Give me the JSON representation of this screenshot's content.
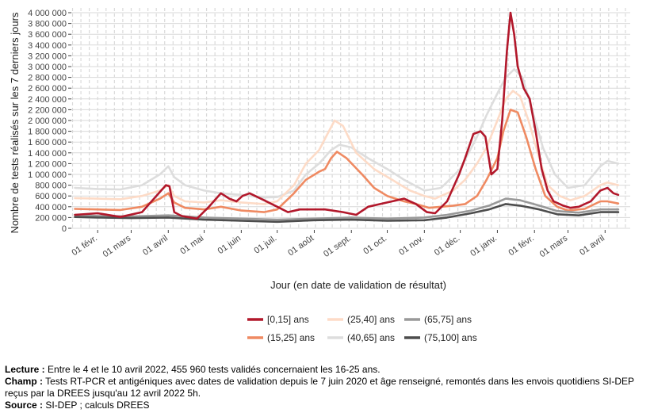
{
  "chart_data": {
    "type": "line",
    "title": "",
    "xlabel": "Jour (en date de validation de résultat)",
    "ylabel": "Nombre de tests réalisés sur les 7 derniers jours",
    "ylim": [
      0,
      4000000
    ],
    "yticks": [
      0,
      200000,
      400000,
      600000,
      800000,
      1000000,
      1200000,
      1400000,
      1600000,
      1800000,
      2000000,
      2200000,
      2400000,
      2600000,
      2800000,
      3000000,
      3200000,
      3400000,
      3600000,
      3800000,
      4000000
    ],
    "ytick_labels": [
      "0",
      "200 000",
      "400 000",
      "600 000",
      "800 000",
      "1 000 000",
      "1 200 000",
      "1 400 000",
      "1 600 000",
      "1 800 000",
      "2 000 000",
      "2 200 000",
      "2 400 000",
      "2 600 000",
      "2 800 000",
      "3 000 000",
      "3 200 000",
      "3 400 000",
      "3 600 000",
      "3 800 000",
      "4 000 000"
    ],
    "xlim": [
      "2021-01-10",
      "2022-04-22"
    ],
    "xticks": [
      "2021-02-01",
      "2021-03-01",
      "2021-04-01",
      "2021-05-01",
      "2021-06-01",
      "2021-07-01",
      "2021-08-01",
      "2021-09-01",
      "2021-10-01",
      "2021-11-01",
      "2021-12-01",
      "2022-01-01",
      "2022-02-01",
      "2022-03-01",
      "2022-04-01"
    ],
    "xtick_labels": [
      "01 févr.",
      "01 mars",
      "01 avril",
      "01 mai",
      "01 juin",
      "01 juil.",
      "01 août",
      "01 sept.",
      "01 oct.",
      "01 nov.",
      "01 déc.",
      "01 janv.",
      "01 févr.",
      "01 mars",
      "01 avril"
    ],
    "grid": true,
    "legend_position": "bottom",
    "series": [
      {
        "name": "[0,15] ans",
        "color": "#b2182b",
        "points": [
          [
            "2021-01-13",
            250000
          ],
          [
            "2021-02-01",
            280000
          ],
          [
            "2021-02-20",
            210000
          ],
          [
            "2021-03-10",
            300000
          ],
          [
            "2021-03-20",
            550000
          ],
          [
            "2021-03-30",
            800000
          ],
          [
            "2021-04-02",
            780000
          ],
          [
            "2021-04-06",
            300000
          ],
          [
            "2021-04-12",
            230000
          ],
          [
            "2021-04-25",
            180000
          ],
          [
            "2021-05-05",
            400000
          ],
          [
            "2021-05-15",
            650000
          ],
          [
            "2021-05-22",
            550000
          ],
          [
            "2021-05-28",
            500000
          ],
          [
            "2021-06-02",
            600000
          ],
          [
            "2021-06-08",
            650000
          ],
          [
            "2021-06-20",
            520000
          ],
          [
            "2021-07-01",
            400000
          ],
          [
            "2021-07-10",
            300000
          ],
          [
            "2021-07-20",
            350000
          ],
          [
            "2021-08-01",
            350000
          ],
          [
            "2021-08-10",
            350000
          ],
          [
            "2021-08-25",
            300000
          ],
          [
            "2021-09-05",
            250000
          ],
          [
            "2021-09-15",
            400000
          ],
          [
            "2021-09-25",
            450000
          ],
          [
            "2021-10-05",
            500000
          ],
          [
            "2021-10-15",
            550000
          ],
          [
            "2021-10-25",
            450000
          ],
          [
            "2021-11-03",
            300000
          ],
          [
            "2021-11-10",
            280000
          ],
          [
            "2021-11-20",
            500000
          ],
          [
            "2021-11-30",
            1000000
          ],
          [
            "2021-12-05",
            1300000
          ],
          [
            "2021-12-12",
            1750000
          ],
          [
            "2021-12-18",
            1800000
          ],
          [
            "2021-12-22",
            1700000
          ],
          [
            "2021-12-27",
            1000000
          ],
          [
            "2022-01-01",
            1100000
          ],
          [
            "2022-01-05",
            2000000
          ],
          [
            "2022-01-09",
            3300000
          ],
          [
            "2022-01-12",
            4000000
          ],
          [
            "2022-01-15",
            3600000
          ],
          [
            "2022-01-18",
            3000000
          ],
          [
            "2022-01-23",
            2600000
          ],
          [
            "2022-01-28",
            2400000
          ],
          [
            "2022-02-02",
            1800000
          ],
          [
            "2022-02-07",
            1100000
          ],
          [
            "2022-02-12",
            700000
          ],
          [
            "2022-02-17",
            500000
          ],
          [
            "2022-02-25",
            420000
          ],
          [
            "2022-03-03",
            380000
          ],
          [
            "2022-03-10",
            400000
          ],
          [
            "2022-03-20",
            500000
          ],
          [
            "2022-03-28",
            700000
          ],
          [
            "2022-04-03",
            750000
          ],
          [
            "2022-04-08",
            650000
          ],
          [
            "2022-04-12",
            620000
          ]
        ]
      },
      {
        "name": "(15,25] ans",
        "color": "#ef8a62",
        "points": [
          [
            "2021-01-13",
            360000
          ],
          [
            "2021-02-01",
            350000
          ],
          [
            "2021-02-20",
            340000
          ],
          [
            "2021-03-10",
            400000
          ],
          [
            "2021-03-25",
            550000
          ],
          [
            "2021-04-01",
            650000
          ],
          [
            "2021-04-06",
            480000
          ],
          [
            "2021-04-15",
            380000
          ],
          [
            "2021-05-01",
            350000
          ],
          [
            "2021-05-15",
            400000
          ],
          [
            "2021-06-01",
            330000
          ],
          [
            "2021-06-20",
            300000
          ],
          [
            "2021-07-01",
            350000
          ],
          [
            "2021-07-15",
            650000
          ],
          [
            "2021-07-25",
            900000
          ],
          [
            "2021-08-05",
            1050000
          ],
          [
            "2021-08-10",
            1100000
          ],
          [
            "2021-08-15",
            1300000
          ],
          [
            "2021-08-20",
            1420000
          ],
          [
            "2021-08-28",
            1300000
          ],
          [
            "2021-09-10",
            1000000
          ],
          [
            "2021-09-20",
            750000
          ],
          [
            "2021-10-01",
            600000
          ],
          [
            "2021-10-15",
            500000
          ],
          [
            "2021-10-25",
            450000
          ],
          [
            "2021-11-05",
            380000
          ],
          [
            "2021-11-15",
            400000
          ],
          [
            "2021-11-25",
            420000
          ],
          [
            "2021-12-05",
            450000
          ],
          [
            "2021-12-15",
            600000
          ],
          [
            "2021-12-23",
            900000
          ],
          [
            "2022-01-01",
            1300000
          ],
          [
            "2022-01-06",
            1800000
          ],
          [
            "2022-01-12",
            2200000
          ],
          [
            "2022-01-18",
            2150000
          ],
          [
            "2022-01-25",
            1700000
          ],
          [
            "2022-02-02",
            1100000
          ],
          [
            "2022-02-10",
            600000
          ],
          [
            "2022-02-20",
            400000
          ],
          [
            "2022-03-01",
            330000
          ],
          [
            "2022-03-15",
            360000
          ],
          [
            "2022-03-28",
            500000
          ],
          [
            "2022-04-03",
            500000
          ],
          [
            "2022-04-12",
            460000
          ]
        ]
      },
      {
        "name": "(25,40] ans",
        "color": "#fddbc7",
        "points": [
          [
            "2021-01-13",
            560000
          ],
          [
            "2021-02-01",
            550000
          ],
          [
            "2021-02-20",
            540000
          ],
          [
            "2021-03-10",
            600000
          ],
          [
            "2021-03-25",
            700000
          ],
          [
            "2021-04-01",
            800000
          ],
          [
            "2021-04-06",
            600000
          ],
          [
            "2021-04-15",
            500000
          ],
          [
            "2021-05-01",
            480000
          ],
          [
            "2021-05-15",
            520000
          ],
          [
            "2021-06-01",
            480000
          ],
          [
            "2021-06-20",
            450000
          ],
          [
            "2021-07-01",
            500000
          ],
          [
            "2021-07-15",
            800000
          ],
          [
            "2021-07-25",
            1200000
          ],
          [
            "2021-08-05",
            1450000
          ],
          [
            "2021-08-12",
            1750000
          ],
          [
            "2021-08-18",
            2000000
          ],
          [
            "2021-08-25",
            1900000
          ],
          [
            "2021-09-05",
            1400000
          ],
          [
            "2021-09-20",
            1100000
          ],
          [
            "2021-10-05",
            900000
          ],
          [
            "2021-10-20",
            700000
          ],
          [
            "2021-11-01",
            600000
          ],
          [
            "2021-11-10",
            550000
          ],
          [
            "2021-11-25",
            700000
          ],
          [
            "2021-12-05",
            900000
          ],
          [
            "2021-12-15",
            1200000
          ],
          [
            "2021-12-23",
            1500000
          ],
          [
            "2022-01-01",
            2000000
          ],
          [
            "2022-01-08",
            2400000
          ],
          [
            "2022-01-14",
            2550000
          ],
          [
            "2022-01-20",
            2450000
          ],
          [
            "2022-01-27",
            2000000
          ],
          [
            "2022-02-05",
            1300000
          ],
          [
            "2022-02-12",
            800000
          ],
          [
            "2022-02-22",
            600000
          ],
          [
            "2022-03-03",
            520000
          ],
          [
            "2022-03-15",
            600000
          ],
          [
            "2022-03-28",
            800000
          ],
          [
            "2022-04-03",
            850000
          ],
          [
            "2022-04-12",
            800000
          ]
        ]
      },
      {
        "name": "(40,65] ans",
        "color": "#dddddd",
        "points": [
          [
            "2021-01-13",
            750000
          ],
          [
            "2021-02-01",
            730000
          ],
          [
            "2021-02-20",
            720000
          ],
          [
            "2021-03-10",
            800000
          ],
          [
            "2021-03-25",
            1000000
          ],
          [
            "2021-04-01",
            1150000
          ],
          [
            "2021-04-06",
            950000
          ],
          [
            "2021-04-15",
            800000
          ],
          [
            "2021-05-01",
            700000
          ],
          [
            "2021-05-15",
            650000
          ],
          [
            "2021-06-01",
            620000
          ],
          [
            "2021-06-20",
            570000
          ],
          [
            "2021-07-01",
            580000
          ],
          [
            "2021-07-15",
            700000
          ],
          [
            "2021-07-25",
            1000000
          ],
          [
            "2021-08-05",
            1200000
          ],
          [
            "2021-08-15",
            1450000
          ],
          [
            "2021-08-22",
            1550000
          ],
          [
            "2021-09-01",
            1500000
          ],
          [
            "2021-09-15",
            1300000
          ],
          [
            "2021-10-01",
            1100000
          ],
          [
            "2021-10-15",
            900000
          ],
          [
            "2021-11-01",
            700000
          ],
          [
            "2021-11-15",
            750000
          ],
          [
            "2021-12-01",
            1100000
          ],
          [
            "2021-12-15",
            1700000
          ],
          [
            "2021-12-23",
            2100000
          ],
          [
            "2022-01-01",
            2500000
          ],
          [
            "2022-01-08",
            2800000
          ],
          [
            "2022-01-15",
            2950000
          ],
          [
            "2022-01-22",
            2800000
          ],
          [
            "2022-01-30",
            2200000
          ],
          [
            "2022-02-08",
            1500000
          ],
          [
            "2022-02-18",
            1000000
          ],
          [
            "2022-03-01",
            750000
          ],
          [
            "2022-03-15",
            800000
          ],
          [
            "2022-03-28",
            1150000
          ],
          [
            "2022-04-03",
            1250000
          ],
          [
            "2022-04-12",
            1200000
          ]
        ]
      },
      {
        "name": "(65,75] ans",
        "color": "#999999",
        "points": [
          [
            "2021-01-13",
            250000
          ],
          [
            "2021-02-01",
            230000
          ],
          [
            "2021-03-01",
            220000
          ],
          [
            "2021-04-01",
            240000
          ],
          [
            "2021-05-01",
            200000
          ],
          [
            "2021-06-01",
            180000
          ],
          [
            "2021-07-01",
            160000
          ],
          [
            "2021-08-01",
            180000
          ],
          [
            "2021-09-01",
            200000
          ],
          [
            "2021-10-01",
            180000
          ],
          [
            "2021-11-01",
            200000
          ],
          [
            "2021-11-20",
            250000
          ],
          [
            "2021-12-10",
            330000
          ],
          [
            "2021-12-25",
            420000
          ],
          [
            "2022-01-08",
            550000
          ],
          [
            "2022-01-20",
            520000
          ],
          [
            "2022-02-05",
            420000
          ],
          [
            "2022-02-20",
            320000
          ],
          [
            "2022-03-10",
            290000
          ],
          [
            "2022-03-28",
            350000
          ],
          [
            "2022-04-12",
            350000
          ]
        ]
      },
      {
        "name": "(75,100] ans",
        "color": "#4d4d4d",
        "points": [
          [
            "2021-01-13",
            210000
          ],
          [
            "2021-02-01",
            200000
          ],
          [
            "2021-03-01",
            190000
          ],
          [
            "2021-04-01",
            200000
          ],
          [
            "2021-05-01",
            160000
          ],
          [
            "2021-06-01",
            140000
          ],
          [
            "2021-07-01",
            120000
          ],
          [
            "2021-08-01",
            150000
          ],
          [
            "2021-09-01",
            160000
          ],
          [
            "2021-10-01",
            140000
          ],
          [
            "2021-11-01",
            150000
          ],
          [
            "2021-11-20",
            200000
          ],
          [
            "2021-12-10",
            280000
          ],
          [
            "2021-12-25",
            350000
          ],
          [
            "2022-01-08",
            450000
          ],
          [
            "2022-01-20",
            420000
          ],
          [
            "2022-02-05",
            350000
          ],
          [
            "2022-02-20",
            260000
          ],
          [
            "2022-03-10",
            240000
          ],
          [
            "2022-03-28",
            300000
          ],
          [
            "2022-04-12",
            300000
          ]
        ]
      }
    ],
    "legend": {
      "entries": [
        "[0,15] ans",
        "(15,25] ans",
        "(25,40] ans",
        "(40,65] ans",
        "(65,75] ans",
        "(75,100] ans"
      ]
    }
  },
  "notes": {
    "lecture_label": "Lecture :",
    "lecture_text": " Entre le 4 et le 10 avril 2022, 455 960 tests validés concernaient les 16-25 ans.",
    "champ_label": "Champ :",
    "champ_text": " Tests RT-PCR et antigéniques avec dates de validation depuis le 7 juin 2020 et âge renseigné, remontés dans les envois quotidiens SI-DEP reçus par la DREES jusqu'au 12 avril 2022 5h.",
    "source_label": "Source :",
    "source_text": " SI-DEP ; calculs DREES"
  }
}
